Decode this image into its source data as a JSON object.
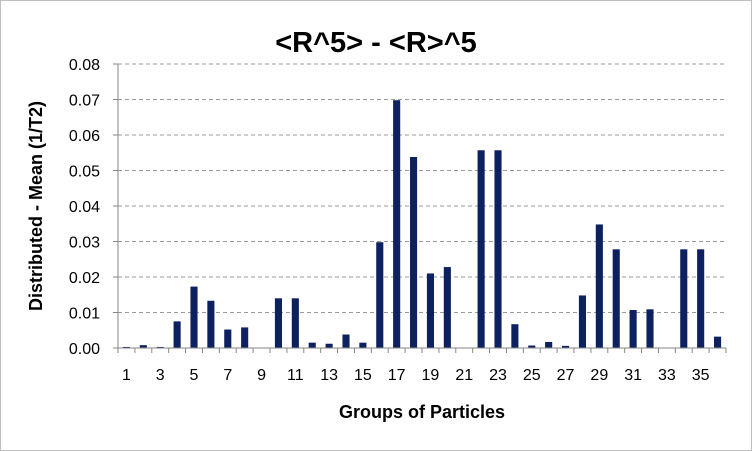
{
  "chart_data": {
    "type": "bar",
    "title": "<R^5> - <R>^5",
    "xlabel": "Groups of Particles",
    "ylabel": "Distributed - Mean (1/T2)",
    "ylim": [
      0,
      0.08
    ],
    "yticks": [
      "0.00",
      "0.01",
      "0.02",
      "0.03",
      "0.04",
      "0.05",
      "0.06",
      "0.07",
      "0.08"
    ],
    "grid": true,
    "legend": "none",
    "bar_color": "#0d2060",
    "categories": [
      "1",
      "2",
      "3",
      "4",
      "5",
      "6",
      "7",
      "8",
      "9",
      "10",
      "11",
      "12",
      "13",
      "14",
      "15",
      "16",
      "17",
      "18",
      "19",
      "20",
      "21",
      "22",
      "23",
      "24",
      "25",
      "26",
      "27",
      "28",
      "29",
      "30",
      "31",
      "32",
      "33",
      "34",
      "35",
      "36"
    ],
    "xtick_labels": [
      "1",
      "3",
      "5",
      "7",
      "9",
      "11",
      "13",
      "15",
      "17",
      "19",
      "21",
      "23",
      "25",
      "27",
      "29",
      "31",
      "33",
      "35"
    ],
    "values": [
      0.0003,
      0.0008,
      0.0003,
      0.0075,
      0.0173,
      0.0133,
      0.0052,
      0.0058,
      0.0,
      0.014,
      0.014,
      0.0015,
      0.0012,
      0.0038,
      0.0015,
      0.0298,
      0.0698,
      0.0538,
      0.021,
      0.0228,
      0.0,
      0.0557,
      0.0557,
      0.0067,
      0.0007,
      0.0017,
      0.0006,
      0.0148,
      0.0348,
      0.0278,
      0.0107,
      0.0109,
      0.0,
      0.0278,
      0.0278,
      0.0032
    ]
  }
}
